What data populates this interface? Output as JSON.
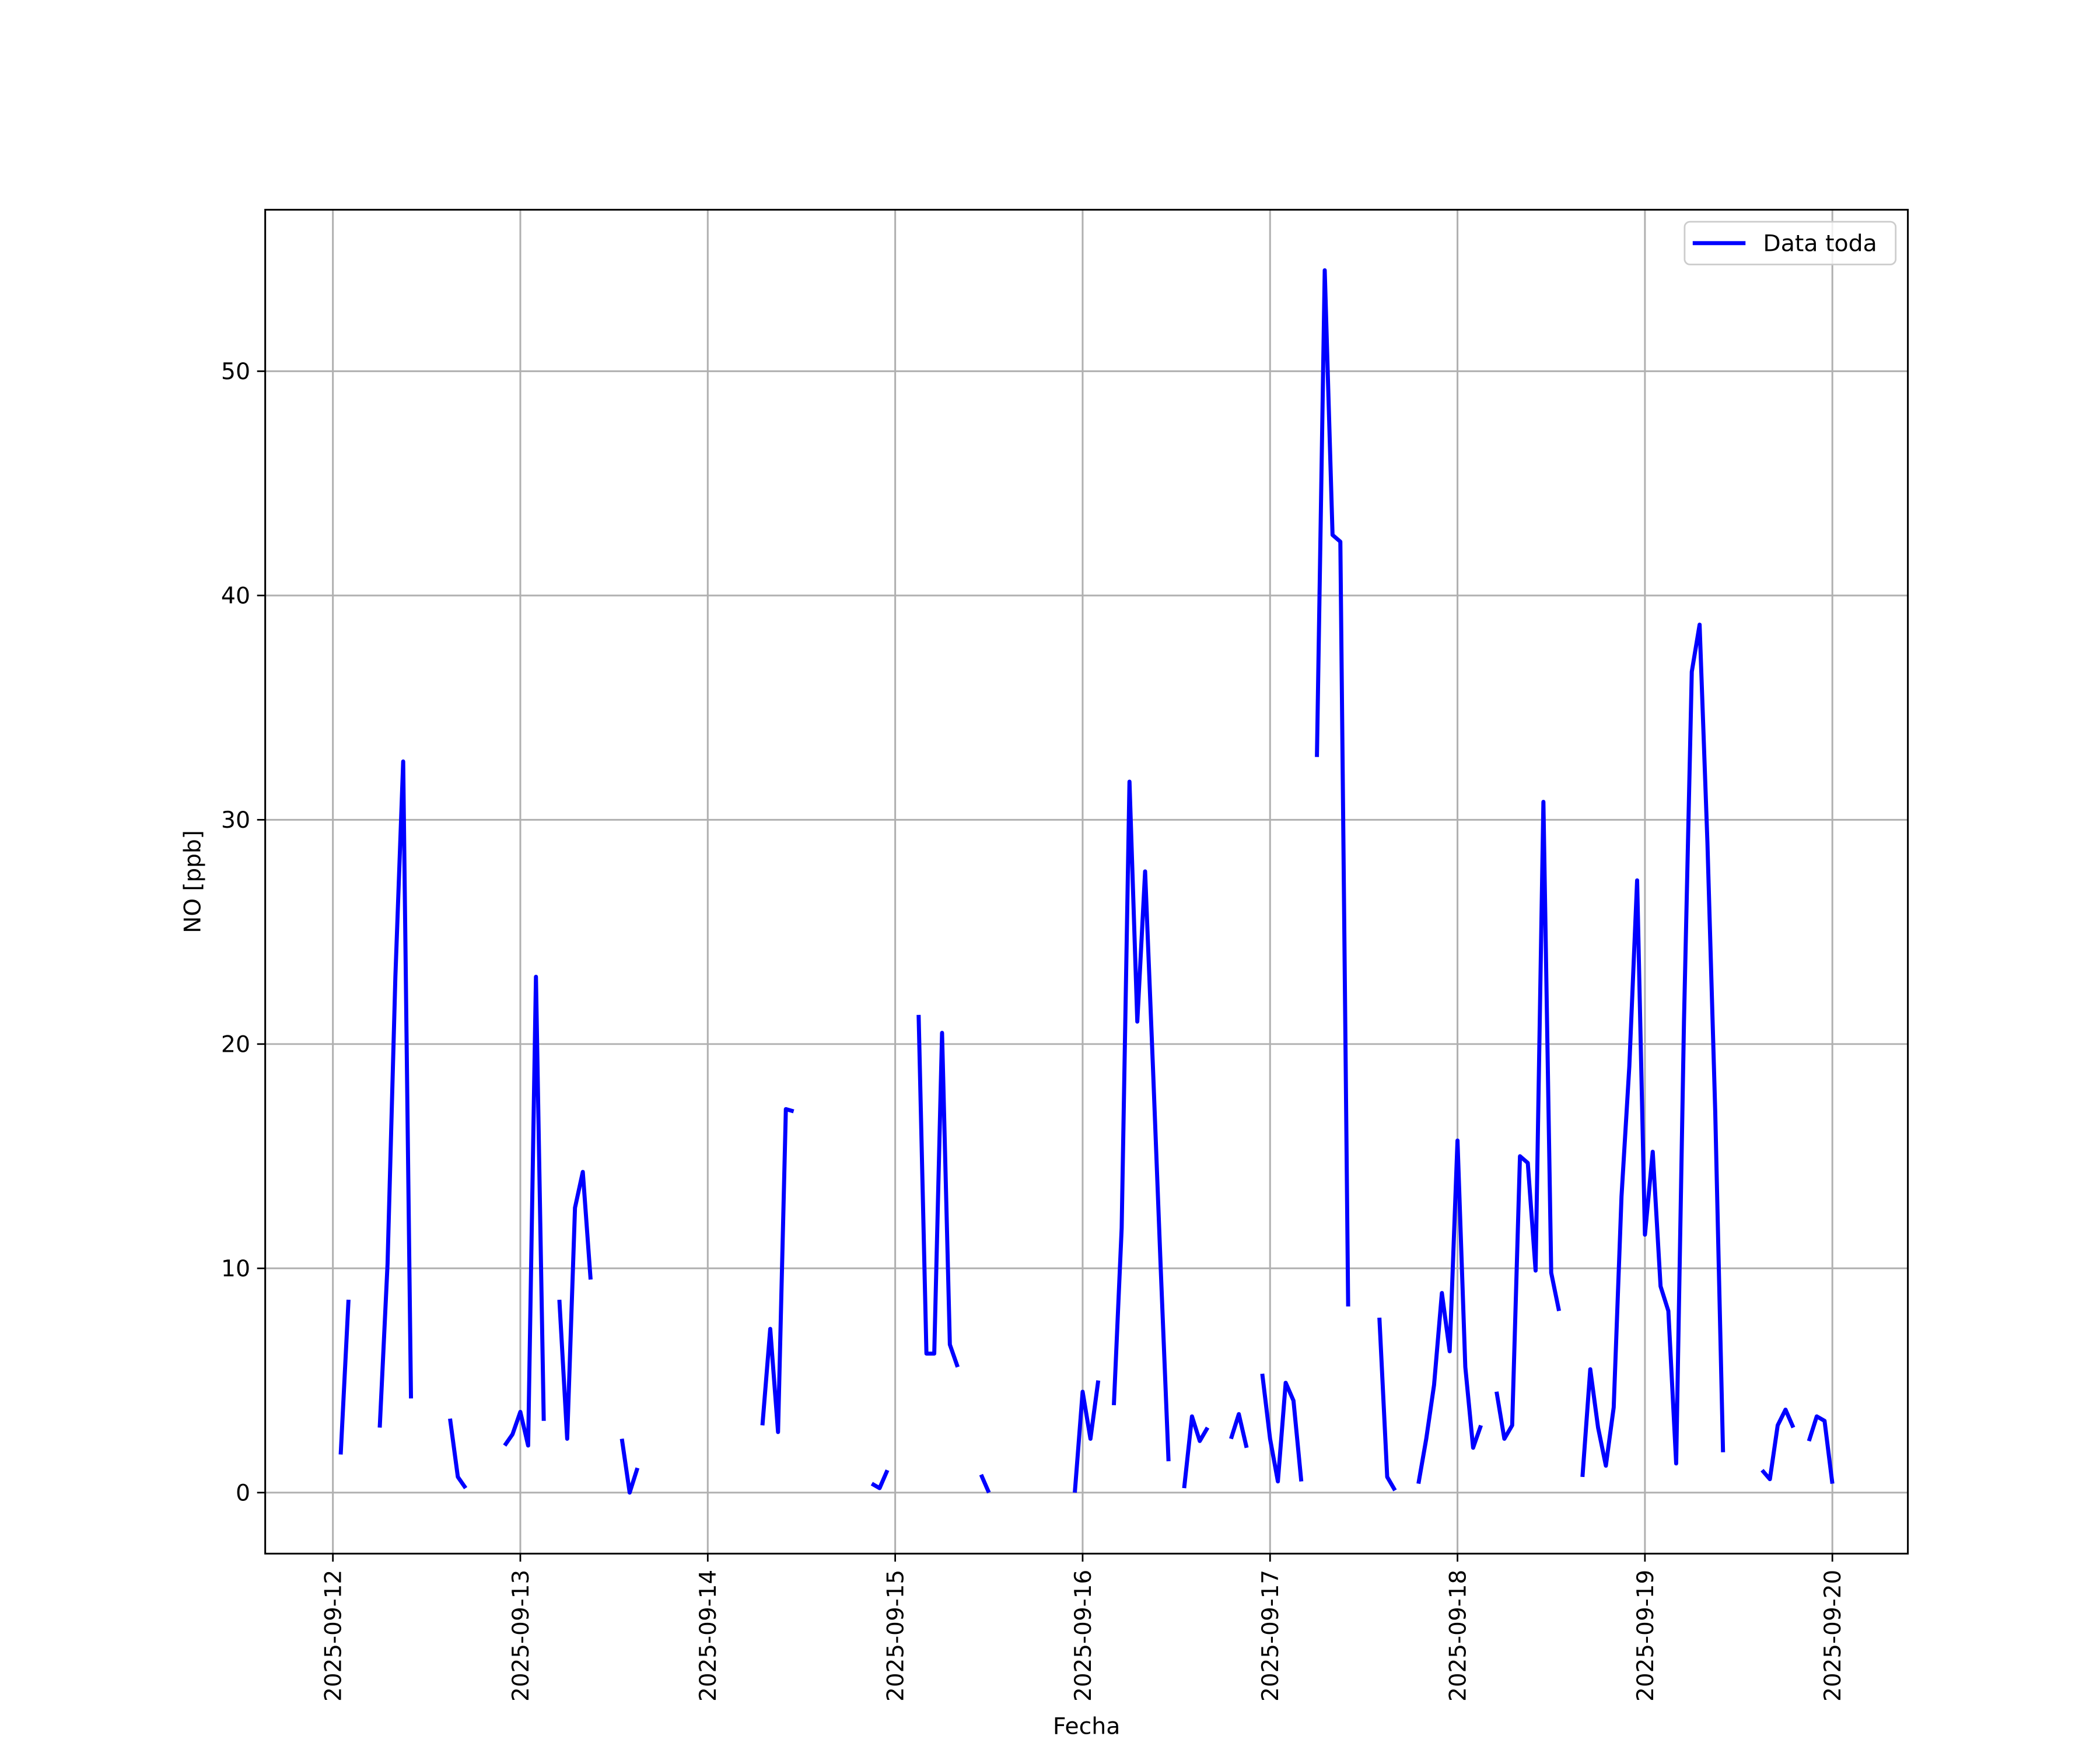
{
  "chart_data": {
    "type": "line",
    "xlabel": "Fecha",
    "ylabel": "NO [ppb]",
    "x": [
      "2025-09-12 01:00",
      "2025-09-12 02:00",
      "2025-09-12 03:00",
      "2025-09-12 04:00",
      "2025-09-12 05:00",
      "2025-09-12 06:00",
      "2025-09-12 07:00",
      "2025-09-12 08:00",
      "2025-09-12 09:00",
      "2025-09-12 10:00",
      "2025-09-12 11:00",
      "2025-09-12 12:00",
      "2025-09-12 13:00",
      "2025-09-12 14:00",
      "2025-09-12 15:00",
      "2025-09-12 16:00",
      "2025-09-12 17:00",
      "2025-09-12 18:00",
      "2025-09-12 19:00",
      "2025-09-12 20:00",
      "2025-09-12 21:00",
      "2025-09-12 22:00",
      "2025-09-12 23:00",
      "2025-09-13 00:00",
      "2025-09-13 01:00",
      "2025-09-13 02:00",
      "2025-09-13 03:00",
      "2025-09-13 04:00",
      "2025-09-13 05:00",
      "2025-09-13 06:00",
      "2025-09-13 07:00",
      "2025-09-13 08:00",
      "2025-09-13 09:00",
      "2025-09-13 10:00",
      "2025-09-13 11:00",
      "2025-09-13 12:00",
      "2025-09-13 13:00",
      "2025-09-13 14:00",
      "2025-09-13 15:00",
      "2025-09-13 16:00",
      "2025-09-13 17:00",
      "2025-09-13 18:00",
      "2025-09-13 19:00",
      "2025-09-13 20:00",
      "2025-09-13 21:00",
      "2025-09-13 22:00",
      "2025-09-13 23:00",
      "2025-09-14 00:00",
      "2025-09-14 01:00",
      "2025-09-14 02:00",
      "2025-09-14 03:00",
      "2025-09-14 04:00",
      "2025-09-14 05:00",
      "2025-09-14 06:00",
      "2025-09-14 07:00",
      "2025-09-14 08:00",
      "2025-09-14 09:00",
      "2025-09-14 10:00",
      "2025-09-14 11:00",
      "2025-09-14 12:00",
      "2025-09-14 13:00",
      "2025-09-14 14:00",
      "2025-09-14 15:00",
      "2025-09-14 16:00",
      "2025-09-14 17:00",
      "2025-09-14 18:00",
      "2025-09-14 19:00",
      "2025-09-14 20:00",
      "2025-09-14 21:00",
      "2025-09-14 22:00",
      "2025-09-14 23:00",
      "2025-09-15 00:00",
      "2025-09-15 01:00",
      "2025-09-15 02:00",
      "2025-09-15 03:00",
      "2025-09-15 04:00",
      "2025-09-15 05:00",
      "2025-09-15 06:00",
      "2025-09-15 07:00",
      "2025-09-15 08:00",
      "2025-09-15 09:00",
      "2025-09-15 10:00",
      "2025-09-15 11:00",
      "2025-09-15 12:00",
      "2025-09-15 13:00",
      "2025-09-15 14:00",
      "2025-09-15 15:00",
      "2025-09-15 16:00",
      "2025-09-15 17:00",
      "2025-09-15 18:00",
      "2025-09-15 19:00",
      "2025-09-15 20:00",
      "2025-09-15 21:00",
      "2025-09-15 22:00",
      "2025-09-15 23:00",
      "2025-09-16 00:00",
      "2025-09-16 01:00",
      "2025-09-16 02:00",
      "2025-09-16 03:00",
      "2025-09-16 04:00",
      "2025-09-16 05:00",
      "2025-09-16 06:00",
      "2025-09-16 07:00",
      "2025-09-16 08:00",
      "2025-09-16 09:00",
      "2025-09-16 10:00",
      "2025-09-16 11:00",
      "2025-09-16 12:00",
      "2025-09-16 13:00",
      "2025-09-16 14:00",
      "2025-09-16 15:00",
      "2025-09-16 16:00",
      "2025-09-16 17:00",
      "2025-09-16 18:00",
      "2025-09-16 19:00",
      "2025-09-16 20:00",
      "2025-09-16 21:00",
      "2025-09-16 22:00",
      "2025-09-16 23:00",
      "2025-09-17 00:00",
      "2025-09-17 01:00",
      "2025-09-17 02:00",
      "2025-09-17 03:00",
      "2025-09-17 04:00",
      "2025-09-17 05:00",
      "2025-09-17 06:00",
      "2025-09-17 07:00",
      "2025-09-17 08:00",
      "2025-09-17 09:00",
      "2025-09-17 10:00",
      "2025-09-17 11:00",
      "2025-09-17 12:00",
      "2025-09-17 13:00",
      "2025-09-17 14:00",
      "2025-09-17 15:00",
      "2025-09-17 16:00",
      "2025-09-17 17:00",
      "2025-09-17 18:00",
      "2025-09-17 19:00",
      "2025-09-17 20:00",
      "2025-09-17 21:00",
      "2025-09-17 22:00",
      "2025-09-17 23:00",
      "2025-09-18 00:00",
      "2025-09-18 01:00",
      "2025-09-18 02:00",
      "2025-09-18 03:00",
      "2025-09-18 04:00",
      "2025-09-18 05:00",
      "2025-09-18 06:00",
      "2025-09-18 07:00",
      "2025-09-18 08:00",
      "2025-09-18 09:00",
      "2025-09-18 10:00",
      "2025-09-18 11:00",
      "2025-09-18 12:00",
      "2025-09-18 13:00",
      "2025-09-18 14:00",
      "2025-09-18 15:00",
      "2025-09-18 16:00",
      "2025-09-18 17:00",
      "2025-09-18 18:00",
      "2025-09-18 19:00",
      "2025-09-18 20:00",
      "2025-09-18 21:00",
      "2025-09-18 22:00",
      "2025-09-18 23:00",
      "2025-09-19 00:00",
      "2025-09-19 01:00",
      "2025-09-19 02:00",
      "2025-09-19 03:00",
      "2025-09-19 04:00",
      "2025-09-19 05:00",
      "2025-09-19 06:00",
      "2025-09-19 07:00",
      "2025-09-19 08:00",
      "2025-09-19 09:00",
      "2025-09-19 10:00",
      "2025-09-19 11:00",
      "2025-09-19 12:00",
      "2025-09-19 13:00",
      "2025-09-19 14:00",
      "2025-09-19 15:00",
      "2025-09-19 16:00",
      "2025-09-19 17:00",
      "2025-09-19 18:00",
      "2025-09-19 19:00",
      "2025-09-19 20:00",
      "2025-09-19 21:00",
      "2025-09-19 22:00",
      "2025-09-19 23:00",
      "2025-09-20 00:00"
    ],
    "series": [
      {
        "name": "Data toda",
        "color": "#0000ff",
        "values": [
          1.7,
          8.6,
          null,
          null,
          null,
          2.9,
          10.2,
          23,
          32.6,
          4.2,
          null,
          null,
          null,
          null,
          3.3,
          0.7,
          0.2,
          null,
          null,
          null,
          null,
          2.1,
          2.6,
          3.6,
          2.1,
          23,
          3.2,
          null,
          8.6,
          2.4,
          12.7,
          14.3,
          9.5,
          null,
          null,
          null,
          2.4,
          0.0,
          1.1,
          null,
          null,
          null,
          null,
          null,
          null,
          null,
          null,
          null,
          null,
          null,
          null,
          null,
          null,
          null,
          3.0,
          7.3,
          2.7,
          17.1,
          17.0,
          null,
          null,
          null,
          null,
          null,
          null,
          null,
          null,
          null,
          0.4,
          0.2,
          1.0,
          null,
          null,
          null,
          21.3,
          6.2,
          6.2,
          20.5,
          6.6,
          5.6,
          null,
          null,
          0.8,
          0.0,
          null,
          null,
          null,
          null,
          null,
          null,
          null,
          null,
          null,
          null,
          0.0,
          4.5,
          2.4,
          5.0,
          null,
          3.9,
          11.8,
          31.7,
          21,
          27.7,
          19,
          10,
          1.4,
          null,
          0.2,
          3.4,
          2.3,
          2.9,
          null,
          null,
          2.4,
          3.5,
          2.0,
          null,
          5.3,
          2.4,
          0.5,
          4.9,
          4.1,
          0.5,
          null,
          32.8,
          54.5,
          42.7,
          42.4,
          8.3,
          null,
          null,
          null,
          7.8,
          0.7,
          0.1,
          null,
          null,
          0.4,
          2.4,
          4.8,
          8.9,
          6.3,
          15.7,
          5.6,
          2.0,
          3.0,
          null,
          4.5,
          2.4,
          3.0,
          15,
          14.7,
          9.9,
          30.8,
          9.8,
          8.1,
          null,
          null,
          0.7,
          5.5,
          2.9,
          1.2,
          3.8,
          13.2,
          19,
          27.3,
          11.5,
          15.2,
          9.2,
          8.1,
          1.3,
          21,
          36.6,
          38.7,
          29,
          17,
          1.8,
          null,
          null,
          null,
          null,
          1.0,
          0.6,
          3.0,
          3.7,
          2.9,
          null,
          2.3,
          3.4,
          3.2,
          0.4
        ]
      }
    ],
    "xlim": [
      "2025-09-11 15:20",
      "2025-09-20 09:40"
    ],
    "xticks": [
      "2025-09-12",
      "2025-09-13",
      "2025-09-14",
      "2025-09-15",
      "2025-09-16",
      "2025-09-17",
      "2025-09-18",
      "2025-09-19",
      "2025-09-20"
    ],
    "ylim": [
      -2.72,
      57.2
    ],
    "yticks": [
      0,
      10,
      20,
      30,
      40,
      50
    ],
    "grid": true,
    "legend": "upper right"
  }
}
